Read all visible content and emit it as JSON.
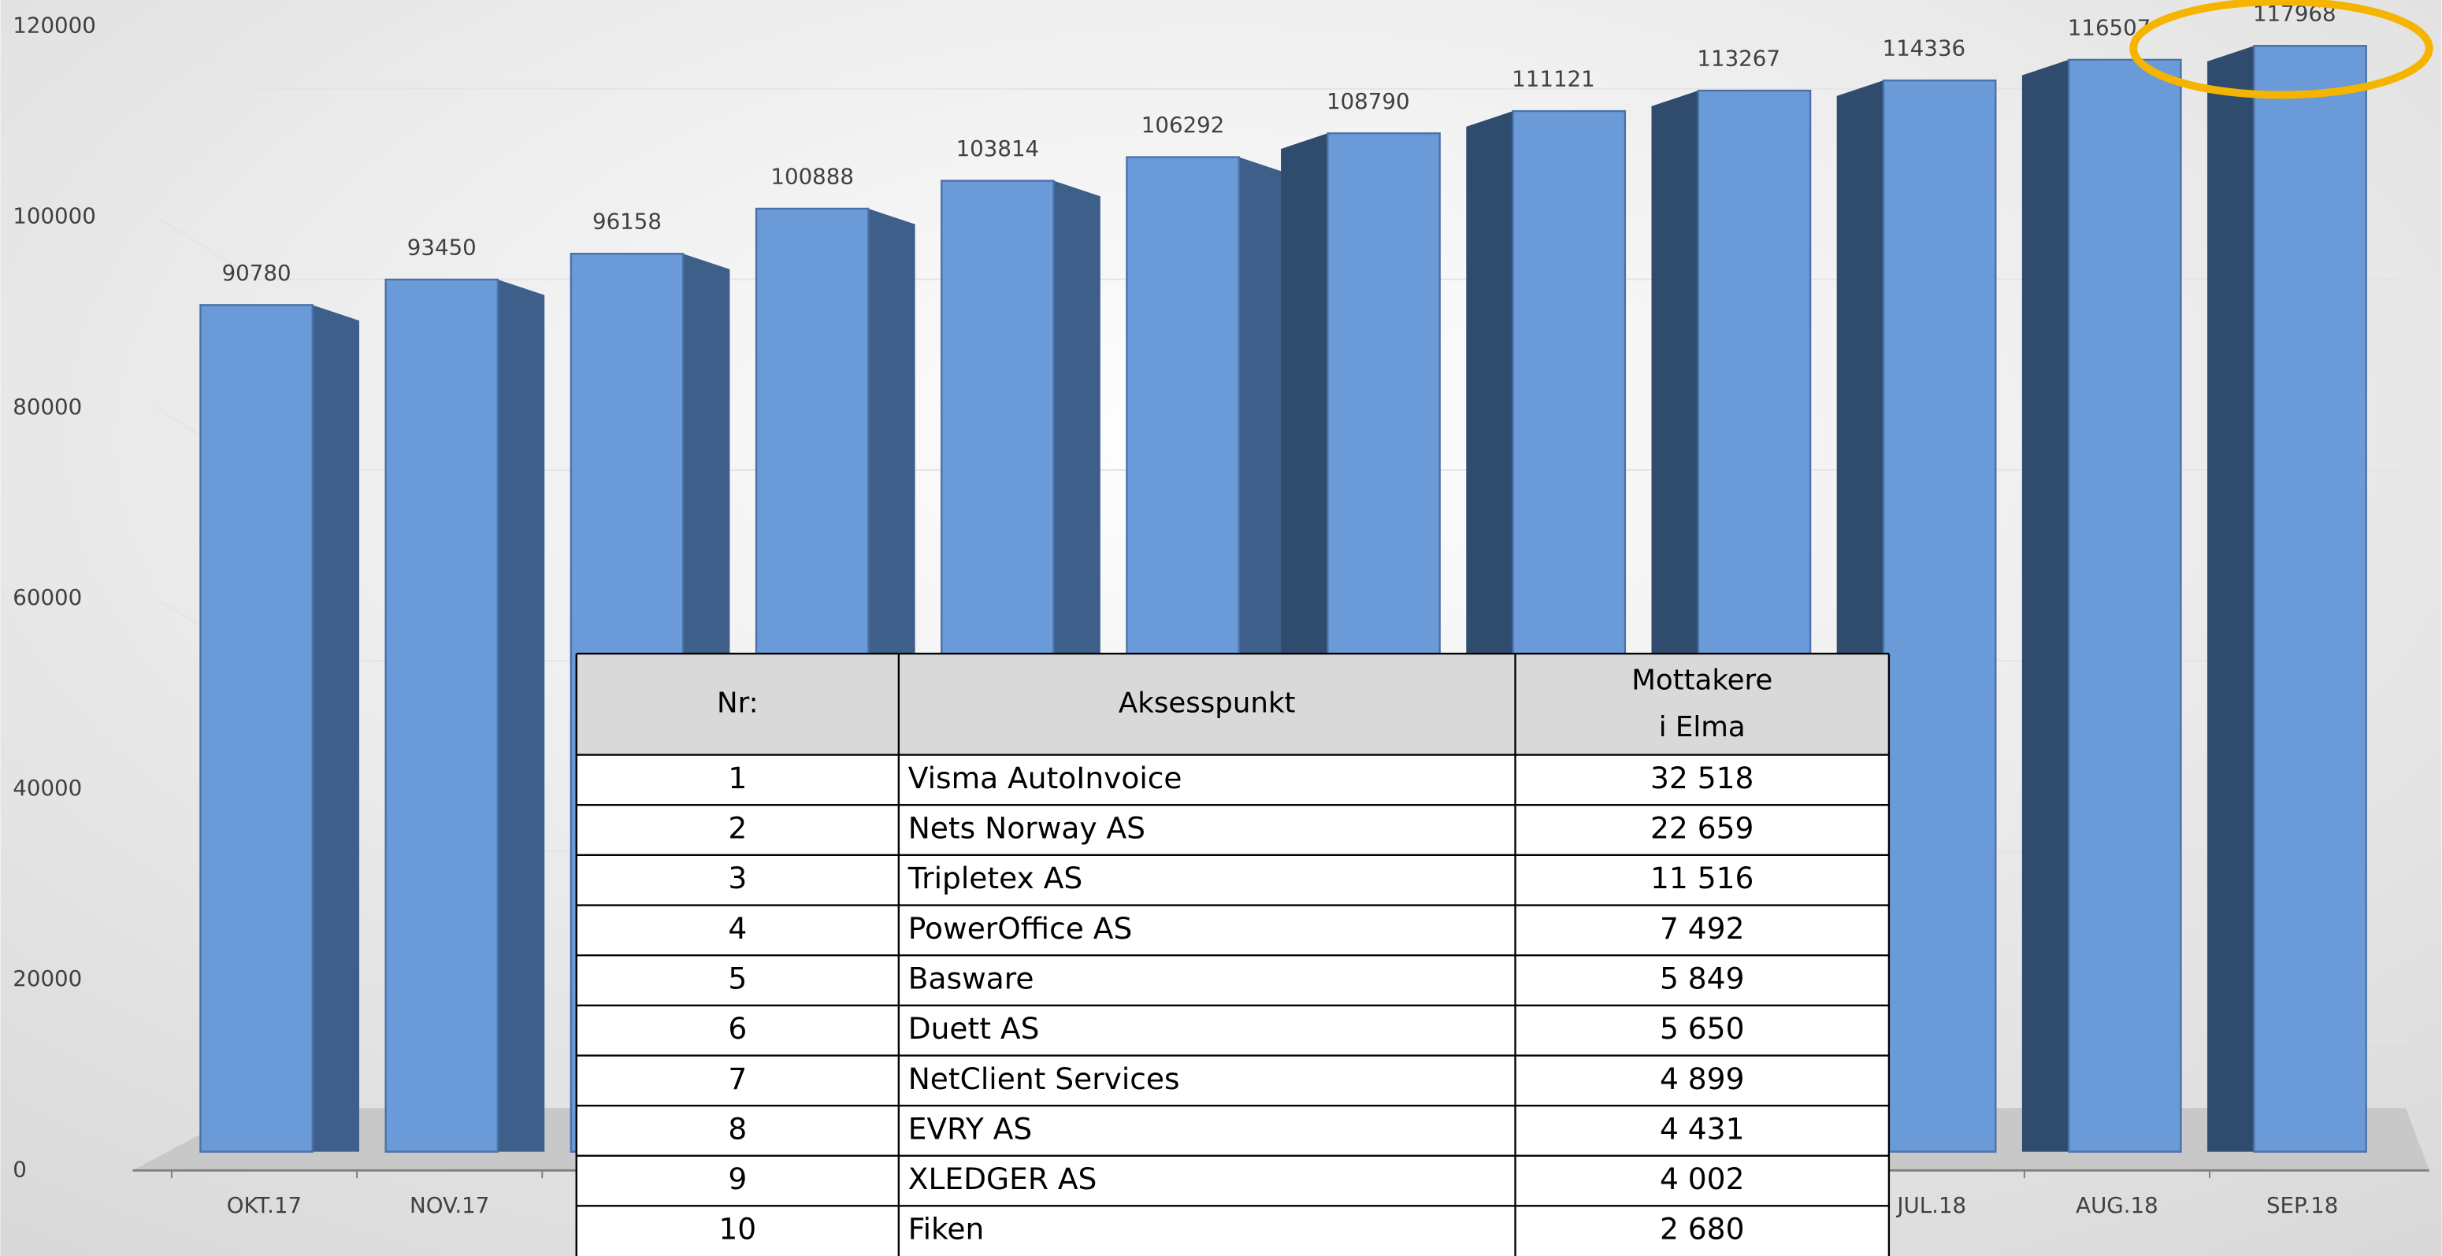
{
  "chart_data": {
    "type": "bar",
    "categories": [
      "OKT.17",
      "NOV.17",
      null,
      null,
      null,
      null,
      null,
      null,
      null,
      "JUL.18",
      "AUG.18",
      "SEP.18"
    ],
    "values": [
      90780,
      93450,
      96158,
      100888,
      103814,
      106292,
      108790,
      111121,
      113267,
      114336,
      116507,
      117968
    ],
    "color": "#6a9ad8",
    "ylim": [
      0,
      120000
    ],
    "yticks": [
      0,
      20000,
      40000,
      60000,
      80000,
      100000,
      120000
    ],
    "grid": true
  },
  "table": {
    "header": [
      "Nr:",
      "Aksesspunkt",
      [
        "Mottakere",
        "i Elma"
      ]
    ],
    "rows": [
      [
        "1",
        "Visma AutoInvoice",
        "32 518"
      ],
      [
        "2",
        "Nets Norway AS",
        "22 659"
      ],
      [
        "3",
        "Tripletex AS",
        "11 516"
      ],
      [
        "4",
        "PowerOffice AS",
        "7 492"
      ],
      [
        "5",
        "Basware",
        "5 849"
      ],
      [
        "6",
        "Duett AS",
        "5 650"
      ],
      [
        "7",
        "NetClient Services",
        "4 899"
      ],
      [
        "8",
        "EVRY AS",
        "4 431"
      ],
      [
        "9",
        "XLEDGER AS",
        "4 002"
      ],
      [
        "10",
        "Fiken",
        "2 680"
      ]
    ]
  }
}
